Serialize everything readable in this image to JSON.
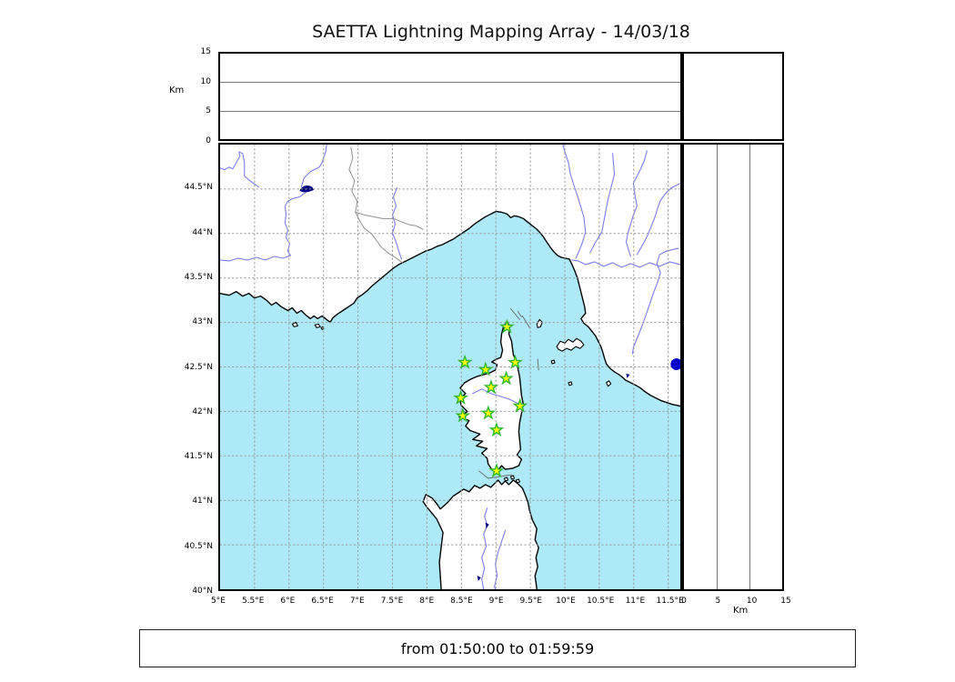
{
  "title": "SAETTA Lightning Mapping Array - 14/03/18",
  "footer": {
    "text": "from 01:50:00 to 01:59:59"
  },
  "top_panel": {
    "ylabel": "Km",
    "ymax": 15,
    "yticks": [
      {
        "label": "15",
        "value": 15
      },
      {
        "label": "10",
        "value": 10
      },
      {
        "label": "5",
        "value": 5
      },
      {
        "label": "0",
        "value": 0
      }
    ]
  },
  "right_panel": {
    "xlabel": "Km",
    "xmax": 15,
    "xticks": [
      {
        "label": "0",
        "value": 0
      },
      {
        "label": "5",
        "value": 5
      },
      {
        "label": "10",
        "value": 10
      },
      {
        "label": "15",
        "value": 15
      }
    ]
  },
  "map": {
    "lat_range": [
      40,
      45
    ],
    "lon_range": [
      5,
      11.67
    ],
    "lat_ticks": [
      {
        "label": "44.5°N",
        "value": 44.5
      },
      {
        "label": "44°N",
        "value": 44
      },
      {
        "label": "43.5°N",
        "value": 43.5
      },
      {
        "label": "43°N",
        "value": 43
      },
      {
        "label": "42.5°N",
        "value": 42.5
      },
      {
        "label": "42°N",
        "value": 42
      },
      {
        "label": "41.5°N",
        "value": 41.5
      },
      {
        "label": "41°N",
        "value": 41
      },
      {
        "label": "40.5°N",
        "value": 40.5
      },
      {
        "label": "40°N",
        "value": 40
      }
    ],
    "lon_ticks": [
      {
        "label": "5°E",
        "value": 5
      },
      {
        "label": "5.5°E",
        "value": 5.5
      },
      {
        "label": "6°E",
        "value": 6
      },
      {
        "label": "6.5°E",
        "value": 6.5
      },
      {
        "label": "7°E",
        "value": 7
      },
      {
        "label": "7.5°E",
        "value": 7.5
      },
      {
        "label": "8°E",
        "value": 8
      },
      {
        "label": "8.5°E",
        "value": 8.5
      },
      {
        "label": "9°E",
        "value": 9
      },
      {
        "label": "9.5°E",
        "value": 9.5
      },
      {
        "label": "10°E",
        "value": 10
      },
      {
        "label": "10.5°E",
        "value": 10.5
      },
      {
        "label": "11°E",
        "value": 11
      },
      {
        "label": "11.5°E",
        "value": 11.5
      }
    ]
  },
  "stations": [
    {
      "lon": 9.16,
      "lat": 42.95
    },
    {
      "lon": 8.55,
      "lat": 42.55
    },
    {
      "lon": 8.85,
      "lat": 42.47
    },
    {
      "lon": 9.28,
      "lat": 42.55
    },
    {
      "lon": 9.15,
      "lat": 42.37
    },
    {
      "lon": 8.93,
      "lat": 42.27
    },
    {
      "lon": 8.49,
      "lat": 42.15
    },
    {
      "lon": 9.35,
      "lat": 42.06
    },
    {
      "lon": 8.52,
      "lat": 41.95
    },
    {
      "lon": 8.89,
      "lat": 41.98
    },
    {
      "lon": 9.01,
      "lat": 41.79
    },
    {
      "lon": 9.01,
      "lat": 41.33
    }
  ],
  "event_marker": {
    "lon": 11.62,
    "lat": 42.53,
    "color": "#0000cc"
  },
  "colors": {
    "sea": "#aee9f7",
    "land": "#ffffff",
    "coast": "#000000",
    "river": "#7b7bee",
    "border_line": "#909090",
    "grid": "#999999",
    "panel_grid": "#777777",
    "station_fill": "#ffff00",
    "station_edge": "#2db82d",
    "lake": "#000080"
  }
}
